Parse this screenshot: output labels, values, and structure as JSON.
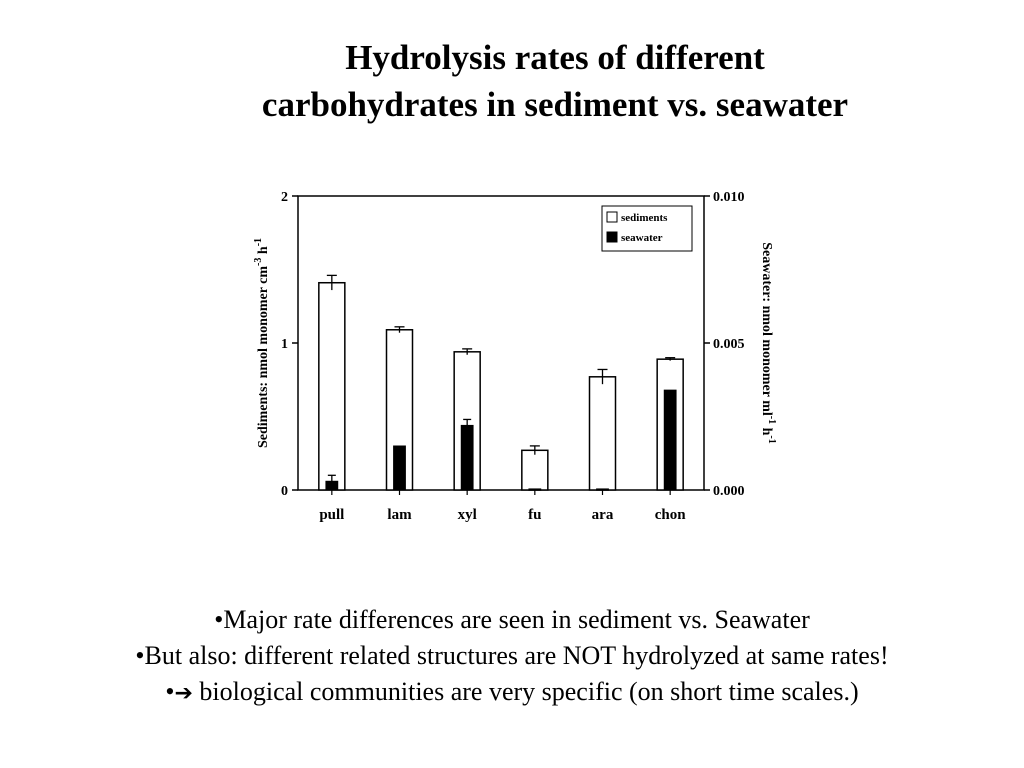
{
  "slide": {
    "title_lines": [
      "Hydrolysis rates of different",
      "carbohydrates in  sediment vs. seawater"
    ],
    "bullets": [
      {
        "marker": "•",
        "text": "Major rate differences are seen in  sediment vs. Seawater"
      },
      {
        "marker": "•",
        "text": "But also: different related structures are NOT hydrolyzed at same rates!"
      },
      {
        "marker": "•",
        "arrow": "➔",
        "text": " biological communities are very specific (on short time scales.)"
      }
    ]
  },
  "chart_data": {
    "type": "bar",
    "categories": [
      "pull",
      "lam",
      "xyl",
      "fu",
      "ara",
      "chon"
    ],
    "series": [
      {
        "name": "sediments",
        "axis": "left",
        "color": "#ffffff",
        "values": [
          1.41,
          1.09,
          0.94,
          0.27,
          0.77,
          0.89
        ],
        "errors": [
          0.05,
          0.02,
          0.02,
          0.03,
          0.05,
          0.01
        ]
      },
      {
        "name": "seawater",
        "axis": "right",
        "color": "#000000",
        "values": [
          0.0003,
          0.0015,
          0.0022,
          4e-05,
          4e-05,
          0.0034
        ],
        "errors": [
          0.0002,
          0.0,
          0.0002,
          0.0,
          0.0,
          0.0
        ]
      }
    ],
    "y_left": {
      "label": "Sediments: nmol monomer cm",
      "sup1": "-3",
      "mid": " h",
      "sup2": "-1",
      "range": [
        0,
        2
      ],
      "ticks": [
        "0",
        "1",
        "2"
      ]
    },
    "y_right": {
      "label": "Seawater: nmol monomer ml",
      "sup1": "-1",
      "mid": " h",
      "sup2": "-1",
      "range": [
        0,
        0.01
      ],
      "ticks": [
        "0.000",
        "0.005",
        "0.010"
      ]
    },
    "legend": {
      "placement": "top-right",
      "entries": [
        "sediments",
        "seawater"
      ]
    },
    "grid": false
  }
}
